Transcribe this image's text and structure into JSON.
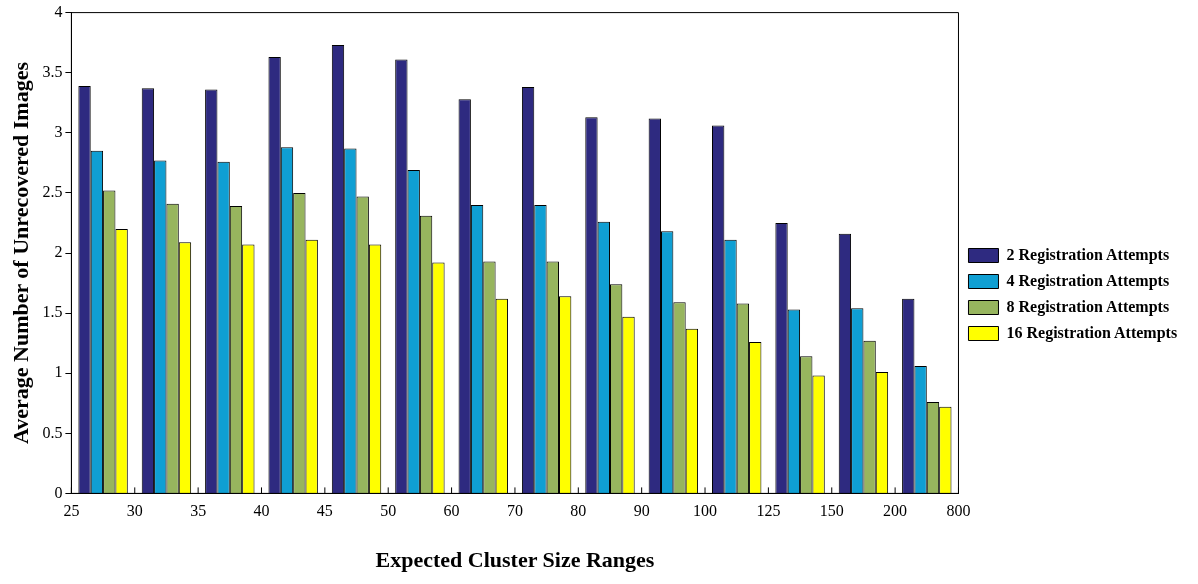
{
  "chart_data": {
    "type": "bar",
    "xlabel": "Expected Cluster Size Ranges",
    "ylabel": "Average Number of Unrecovered Images",
    "categories": [
      null,
      null,
      null,
      null,
      null,
      null,
      null,
      null,
      null,
      null,
      null,
      null,
      null,
      null
    ],
    "annotations": [
      "25",
      "30",
      "35",
      "40",
      "45",
      "50",
      "60",
      "70",
      "80",
      "90",
      "100",
      "125",
      "150",
      "200",
      "800"
    ],
    "ylim": [
      0,
      4
    ],
    "yticks": [
      0,
      0.5,
      1,
      1.5,
      2,
      2.5,
      3,
      3.5,
      4
    ],
    "grid": false,
    "legend": "right",
    "series": [
      {
        "name": "2 Registration Attempts",
        "color": "#2e2a80",
        "values": [
          3.39,
          3.37,
          3.36,
          3.63,
          3.73,
          3.61,
          3.28,
          3.38,
          3.13,
          3.12,
          3.06,
          2.25,
          2.16,
          1.62
        ]
      },
      {
        "name": "4 Registration Attempts",
        "color": "#0f9fd3",
        "values": [
          2.85,
          2.77,
          2.76,
          2.88,
          2.87,
          2.69,
          2.4,
          2.4,
          2.26,
          2.18,
          2.11,
          1.53,
          1.54,
          1.06
        ]
      },
      {
        "name": "8 Registration Attempts",
        "color": "#97b55e",
        "values": [
          2.52,
          2.41,
          2.39,
          2.5,
          2.47,
          2.31,
          1.93,
          1.93,
          1.74,
          1.59,
          1.58,
          1.14,
          1.27,
          0.76
        ]
      },
      {
        "name": "16 Registration Attempts",
        "color": "#ffff00",
        "values": [
          2.2,
          2.09,
          2.07,
          2.11,
          2.07,
          1.92,
          1.62,
          1.64,
          1.47,
          1.37,
          1.26,
          0.98,
          1.01,
          0.72
        ]
      }
    ]
  }
}
